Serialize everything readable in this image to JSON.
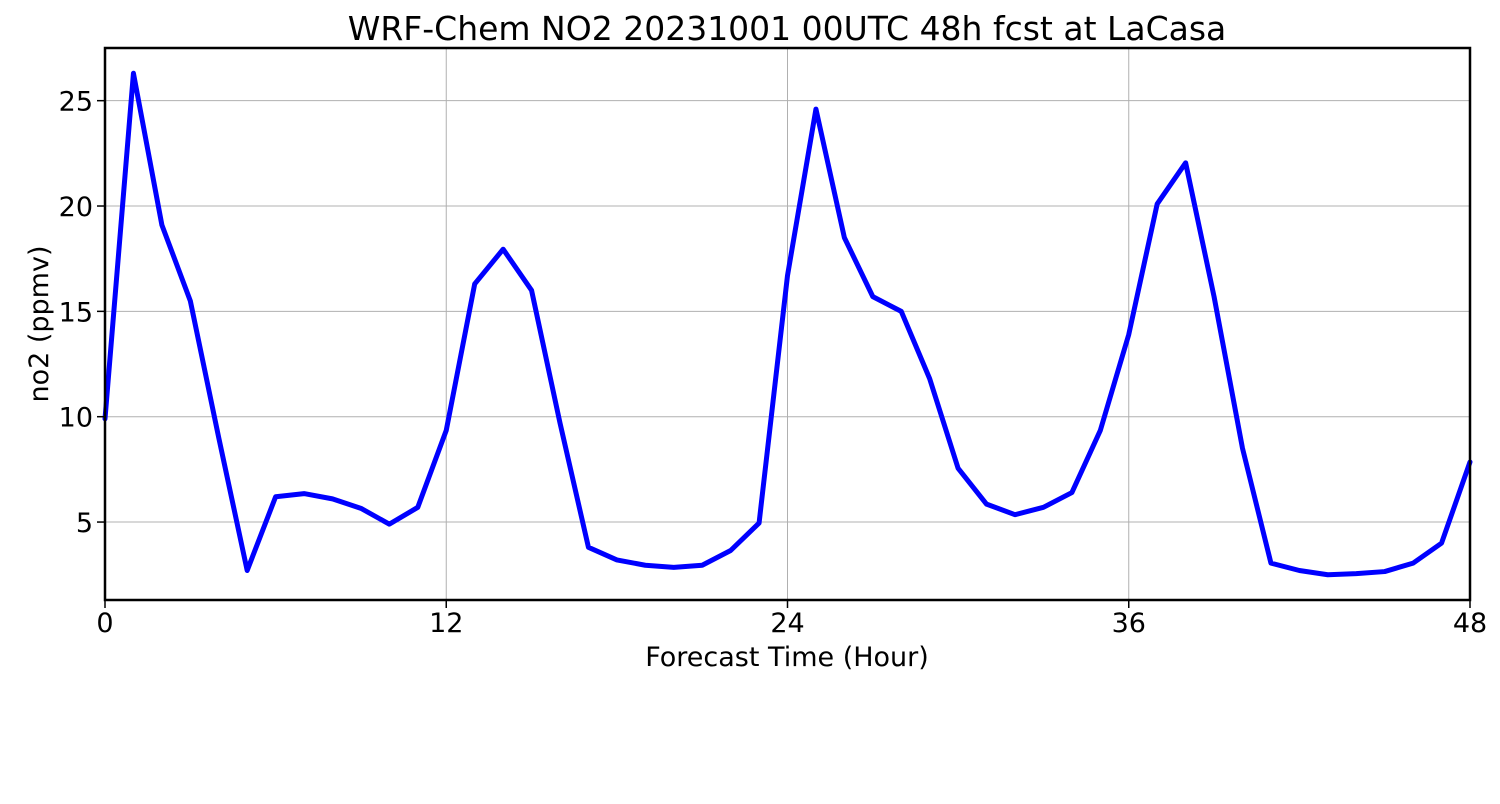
{
  "chart_data": {
    "type": "line",
    "title": "WRF-Chem NO2  20231001 00UTC 48h fcst at LaCasa",
    "xlabel": "Forecast Time (Hour)",
    "ylabel": "no2  (ppmv)",
    "xlim": [
      0,
      48
    ],
    "ylim": [
      1.3,
      27.5
    ],
    "xticks": [
      0,
      12,
      24,
      36,
      48
    ],
    "xtick_labels": [
      "0",
      "12",
      "24",
      "36",
      "48"
    ],
    "yticks": [
      5,
      10,
      15,
      20,
      25
    ],
    "ytick_labels": [
      "5",
      "10",
      "15",
      "20",
      "25"
    ],
    "grid": true,
    "legend": "none",
    "series": [
      {
        "color": "#0000ff",
        "x": [
          0,
          1,
          2,
          3,
          4,
          5,
          6,
          7,
          8,
          9,
          10,
          11,
          12,
          13,
          14,
          15,
          16,
          17,
          18,
          19,
          20,
          21,
          22,
          23,
          24,
          25,
          26,
          27,
          28,
          29,
          30,
          31,
          32,
          33,
          34,
          35,
          36,
          37,
          38,
          39,
          40,
          41,
          42,
          43,
          44,
          45,
          46,
          47,
          48
        ],
        "y": [
          9.9,
          26.3,
          19.1,
          15.5,
          9.0,
          2.7,
          6.2,
          6.35,
          6.1,
          5.65,
          4.9,
          5.7,
          9.35,
          16.3,
          17.95,
          16.0,
          9.7,
          3.8,
          3.2,
          2.95,
          2.85,
          2.95,
          3.65,
          4.95,
          16.7,
          24.6,
          18.5,
          15.7,
          15.0,
          11.8,
          7.55,
          5.85,
          5.35,
          5.7,
          6.4,
          9.35,
          13.9,
          20.1,
          22.05,
          15.7,
          8.5,
          3.05,
          2.7,
          2.5,
          2.55,
          2.65,
          3.05,
          4.0,
          7.85
        ]
      }
    ]
  }
}
